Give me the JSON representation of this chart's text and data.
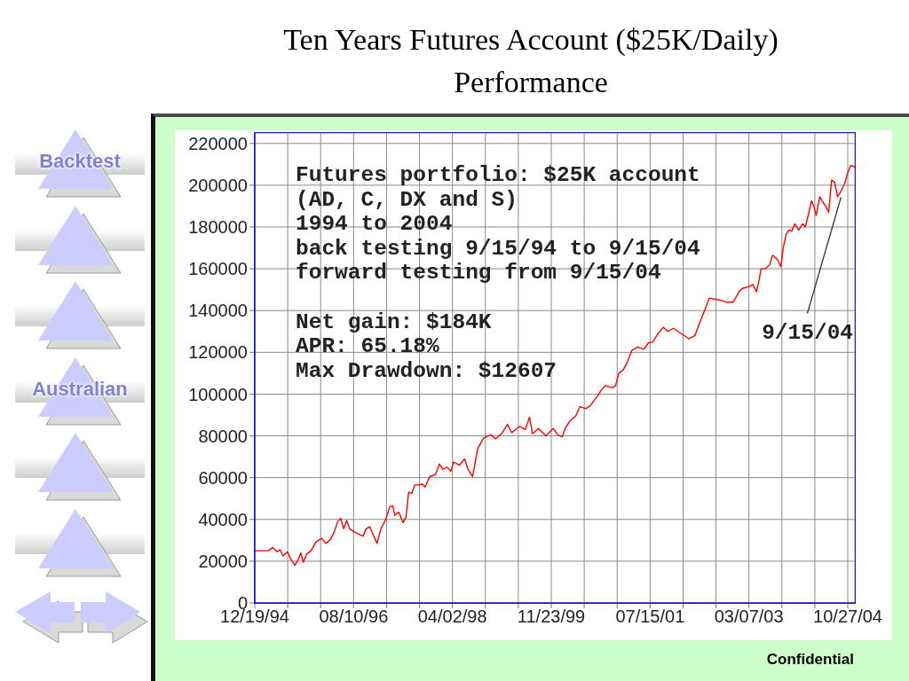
{
  "chart_data": {
    "type": "line",
    "title": "Ten Years Futures Account ($25K/Daily) Performance",
    "x": [
      "1994-12-19",
      "1995-03-09",
      "1995-04-06",
      "1995-05-04",
      "1995-05-22",
      "1995-06-09",
      "1995-07-05",
      "1995-07-23",
      "1995-08-20",
      "1995-09-07",
      "1995-09-25",
      "1995-10-09",
      "1995-10-31",
      "1995-11-26",
      "1995-12-24",
      "1996-01-29",
      "1996-02-24",
      "1996-03-23",
      "1996-04-14",
      "1996-05-06",
      "1996-05-24",
      "1996-06-11",
      "1996-06-29",
      "1996-07-17",
      "1996-08-14",
      "1996-09-09",
      "1996-10-07",
      "1996-10-25",
      "1996-11-16",
      "1996-12-08",
      "1996-12-30",
      "1997-01-23",
      "1997-02-18",
      "1997-03-18",
      "1997-04-05",
      "1997-04-17",
      "1997-05-11",
      "1997-06-06",
      "1997-06-24",
      "1997-07-10",
      "1997-07-30",
      "1997-08-17",
      "1997-09-14",
      "1997-09-30",
      "1997-10-18",
      "1997-11-15",
      "1997-12-21",
      "1998-01-12",
      "1998-02-03",
      "1998-03-01",
      "1998-03-23",
      "1998-04-10",
      "1998-05-14",
      "1998-06-15",
      "1998-07-05",
      "1998-08-02",
      "1998-09-03",
      "1998-10-09",
      "1998-11-22",
      "1998-12-20",
      "1999-01-25",
      "1999-03-02",
      "1999-03-28",
      "1999-05-13",
      "1999-06-18",
      "1999-07-14",
      "1999-08-01",
      "1999-09-06",
      "1999-10-22",
      "1999-12-05",
      "2000-01-02",
      "2000-01-28",
      "2000-02-15",
      "2000-03-14",
      "2000-04-19",
      "2000-05-15",
      "2000-06-20",
      "2000-07-18",
      "2000-08-05",
      "2000-08-29",
      "2000-09-18",
      "2000-10-16",
      "2000-11-29",
      "2000-12-17",
      "2001-01-06",
      "2001-02-01",
      "2001-02-25",
      "2001-03-27",
      "2001-05-02",
      "2001-06-07",
      "2001-07-05",
      "2001-07-31",
      "2001-08-28",
      "2001-10-03",
      "2001-10-29",
      "2001-12-04",
      "2002-01-01",
      "2002-02-08",
      "2002-03-08",
      "2002-04-13",
      "2002-05-09",
      "2002-06-06",
      "2002-07-10",
      "2002-08-07",
      "2002-09-12",
      "2002-10-26",
      "2002-12-01",
      "2003-01-06",
      "2003-01-24",
      "2003-03-09",
      "2003-03-31",
      "2003-04-22",
      "2003-05-10",
      "2003-05-20",
      "2003-06-15",
      "2003-07-11",
      "2003-07-29",
      "2003-08-26",
      "2003-09-17",
      "2003-10-01",
      "2003-10-19",
      "2003-11-04",
      "2003-11-22",
      "2003-12-10",
      "2004-01-03",
      "2004-01-27",
      "2004-02-12",
      "2004-02-28",
      "2004-03-21",
      "2004-04-04",
      "2004-04-18",
      "2004-05-10",
      "2004-05-28",
      "2004-06-15",
      "2004-07-03",
      "2004-07-21",
      "2004-08-08",
      "2004-08-26",
      "2004-09-15",
      "2004-10-09",
      "2004-10-27",
      "2004-11-14",
      "2004-12-02",
      "2004-12-09"
    ],
    "values": [
      25000,
      25000,
      26500,
      24500,
      25500,
      22500,
      24500,
      21500,
      18000,
      20500,
      24000,
      19500,
      23500,
      25000,
      29000,
      31000,
      28500,
      30500,
      34000,
      39000,
      40500,
      35500,
      39500,
      35500,
      34000,
      33000,
      32000,
      35500,
      36500,
      32500,
      28500,
      35500,
      39500,
      46000,
      46500,
      42000,
      43500,
      38500,
      41000,
      53000,
      52500,
      56500,
      56500,
      57000,
      55500,
      60500,
      61500,
      66500,
      64000,
      65000,
      63000,
      67500,
      66000,
      69000,
      64000,
      60500,
      74000,
      79000,
      80500,
      78500,
      81000,
      85500,
      81500,
      84500,
      83000,
      89000,
      81000,
      83500,
      80000,
      83500,
      80500,
      79500,
      83500,
      87000,
      89500,
      94000,
      93000,
      94500,
      96500,
      99000,
      101500,
      104000,
      103000,
      104000,
      110000,
      111500,
      115000,
      121000,
      122500,
      121500,
      124500,
      125000,
      128500,
      132000,
      130000,
      131500,
      130000,
      128000,
      126500,
      128000,
      133500,
      139000,
      146000,
      145500,
      145000,
      144000,
      144000,
      149000,
      150500,
      151500,
      152500,
      149000,
      155500,
      160000,
      160000,
      162000,
      166500,
      164500,
      161000,
      170000,
      176500,
      178500,
      178000,
      181500,
      178500,
      181500,
      180000,
      185000,
      192500,
      190000,
      185500,
      194500,
      192000,
      190000,
      187000,
      202500,
      201500,
      194500,
      197000,
      201000,
      206000,
      209500,
      209000,
      208500
    ],
    "color": "#ff0000",
    "xlim": [
      "1994-12-19",
      "2004-12-09"
    ],
    "xticks": [
      {
        "value": "1994-12-19",
        "label": "12/19/94"
      },
      {
        "value": "1995-07-07",
        "label": null
      },
      {
        "value": "1996-01-23",
        "label": null
      },
      {
        "value": "1996-08-10",
        "label": "08/10/96"
      },
      {
        "value": "1997-02-26",
        "label": null
      },
      {
        "value": "1997-09-14",
        "label": null
      },
      {
        "value": "1998-04-02",
        "label": "04/02/98"
      },
      {
        "value": "1998-10-19",
        "label": null
      },
      {
        "value": "1999-05-07",
        "label": null
      },
      {
        "value": "1999-11-23",
        "label": "11/23/99"
      },
      {
        "value": "2000-06-10",
        "label": null
      },
      {
        "value": "2000-12-27",
        "label": null
      },
      {
        "value": "2001-07-15",
        "label": "07/15/01"
      },
      {
        "value": "2002-01-31",
        "label": null
      },
      {
        "value": "2002-08-19",
        "label": null
      },
      {
        "value": "2003-03-07",
        "label": "03/07/03"
      },
      {
        "value": "2003-09-23",
        "label": null
      },
      {
        "value": "2004-04-10",
        "label": null
      },
      {
        "value": "2004-10-27",
        "label": "10/27/04"
      }
    ],
    "ylim": [
      0,
      225000
    ],
    "yticks": [
      0,
      20000,
      40000,
      60000,
      80000,
      100000,
      120000,
      140000,
      160000,
      180000,
      200000,
      220000
    ],
    "grid": true,
    "annotations": [
      "Futures portfolio: $25K account\n(AD, C, DX and S)\n1994 to 2004\nback testing 9/15/94 to 9/15/04\nforward testing from 9/15/04",
      "Net gain: $184K\nAPR: 65.18%\nMax Drawdown: $12607",
      {
        "text": "9/15/04",
        "x": "2004-09-15",
        "y": 194000
      },
      "Confidential",
      "Backtest",
      "Australian"
    ]
  }
}
